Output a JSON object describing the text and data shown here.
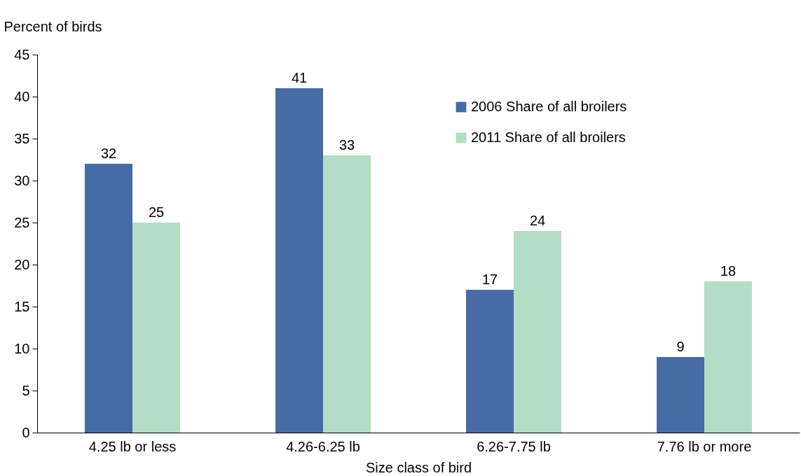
{
  "chart_data": {
    "type": "bar",
    "xlabel": "Size class of bird",
    "ylabel": "Percent of birds",
    "categories": [
      "4.25 lb or less",
      "4.26-6.25 lb",
      "6.26-7.75 lb",
      "7.76 lb or more"
    ],
    "series": [
      {
        "name": "2006 Share of all broilers",
        "color": "#476ba5",
        "values": [
          32,
          41,
          17,
          9
        ]
      },
      {
        "name": "2011 Share of all broilers",
        "color": "#b3ddc4",
        "values": [
          25,
          33,
          24,
          18
        ]
      }
    ],
    "ylim": [
      0,
      45
    ],
    "yticks": [
      0,
      5,
      10,
      15,
      20,
      25,
      30,
      35,
      40,
      45
    ],
    "grid": false,
    "legend": "top right",
    "data_labels": true
  }
}
